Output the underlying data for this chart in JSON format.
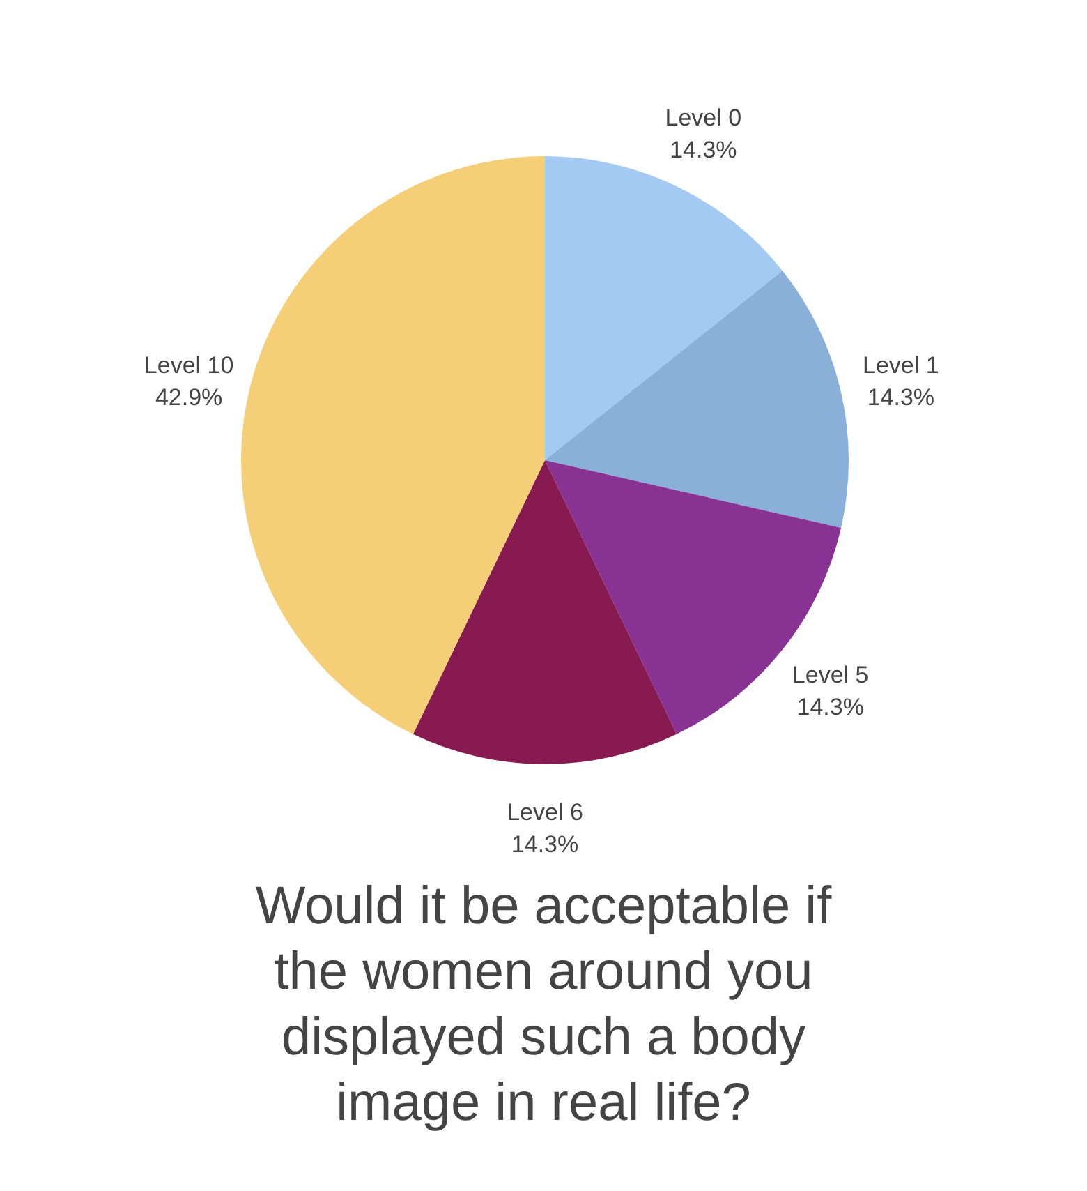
{
  "chart_data": {
    "type": "pie",
    "title": "Would it be acceptable if the women around you displayed such a body image in real life?",
    "categories": [
      "Level 0",
      "Level 1",
      "Level 5",
      "Level 6",
      "Level 10"
    ],
    "values": [
      14.3,
      14.3,
      14.3,
      14.3,
      42.9
    ],
    "value_labels": [
      "14.3%",
      "14.3%",
      "14.3%",
      "14.3%",
      "42.9%"
    ],
    "colors": [
      "#a4c9f3",
      "#8aafd9",
      "#883294",
      "#881a52",
      "#f4cf78"
    ]
  }
}
